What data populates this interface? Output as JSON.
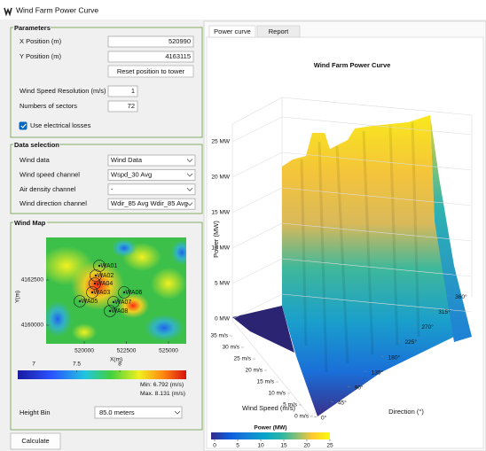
{
  "window": {
    "title": "Wind Farm Power Curve"
  },
  "parameters": {
    "title": "Parameters",
    "x_position": {
      "label": "X Position (m)",
      "value": 520990
    },
    "y_position": {
      "label": "Y Position (m)",
      "value": 4163115
    },
    "reset_button": "Reset position to tower",
    "wind_speed_resolution": {
      "label": "Wind Speed Resolution (m/s)",
      "value": 1
    },
    "sectors": {
      "label": "Numbers of sectors",
      "value": 72
    },
    "electrical_losses": {
      "label": "Use electrical losses",
      "checked": true
    }
  },
  "data_selection": {
    "title": "Data selection",
    "rows": [
      {
        "label": "Wind data",
        "value": "Wind Data"
      },
      {
        "label": "Wind speed channel",
        "value": "Wspd_30 Avg"
      },
      {
        "label": "Air density channel",
        "value": "-"
      },
      {
        "label": "Wind direction channel",
        "value": "Wdir_85 Avg Wdir_85 Avg"
      }
    ]
  },
  "wind_map": {
    "title": "Wind Map",
    "y_label": "Y(m)",
    "y_ticks": [
      4162500,
      4160000
    ],
    "x_label": "X(m)",
    "x_ticks": [
      520000,
      522500,
      525000
    ],
    "turbines": [
      "WA01",
      "WA02",
      "WA03",
      "WA04",
      "WA05",
      "WA06",
      "WA07",
      "WA08"
    ],
    "colorbar_ticks": [
      7,
      7.5,
      8
    ],
    "min_text": "Min: 6.792 (m/s)",
    "max_text": "Max. 8.131 (m/s)",
    "height_bin": {
      "label": "Height Bin",
      "value": "85.0 meters"
    }
  },
  "calculate_button": "Calculate",
  "tabs": [
    "Power curve",
    "Report"
  ],
  "power_chart": {
    "title": "Wind Farm Power Curve",
    "z_label": "Power (MW)",
    "z_ticks": [
      {
        "value": 0,
        "label": "0 MW"
      },
      {
        "value": 5,
        "label": "5 MW"
      },
      {
        "value": 10,
        "label": "10 MW"
      },
      {
        "value": 15,
        "label": "15 MW"
      },
      {
        "value": 20,
        "label": "20 MW"
      },
      {
        "value": 25,
        "label": "25 MW"
      }
    ],
    "speed_label": "Wind Speed (m/s)",
    "speed_ticks": [
      {
        "value": 0,
        "label": "0 m/s"
      },
      {
        "value": 5,
        "label": "5 m/s"
      },
      {
        "value": 10,
        "label": "10 m/s"
      },
      {
        "value": 15,
        "label": "15 m/s"
      },
      {
        "value": 20,
        "label": "20 m/s"
      },
      {
        "value": 25,
        "label": "25 m/s"
      },
      {
        "value": 30,
        "label": "30 m/s"
      },
      {
        "value": 35,
        "label": "35 m/s"
      }
    ],
    "direction_label": "Direction (°)",
    "direction_ticks": [
      {
        "value": 0,
        "label": "0°"
      },
      {
        "value": 45,
        "label": "45°"
      },
      {
        "value": 90,
        "label": "90°"
      },
      {
        "value": 135,
        "label": "135°"
      },
      {
        "value": 180,
        "label": "180°"
      },
      {
        "value": 225,
        "label": "225°"
      },
      {
        "value": 270,
        "label": "270°"
      },
      {
        "value": 315,
        "label": "315°"
      },
      {
        "value": 360,
        "label": "360°"
      }
    ],
    "colorbar": {
      "title": "Power (MW)",
      "ticks": [
        0,
        5,
        10,
        15,
        20,
        25
      ]
    }
  }
}
